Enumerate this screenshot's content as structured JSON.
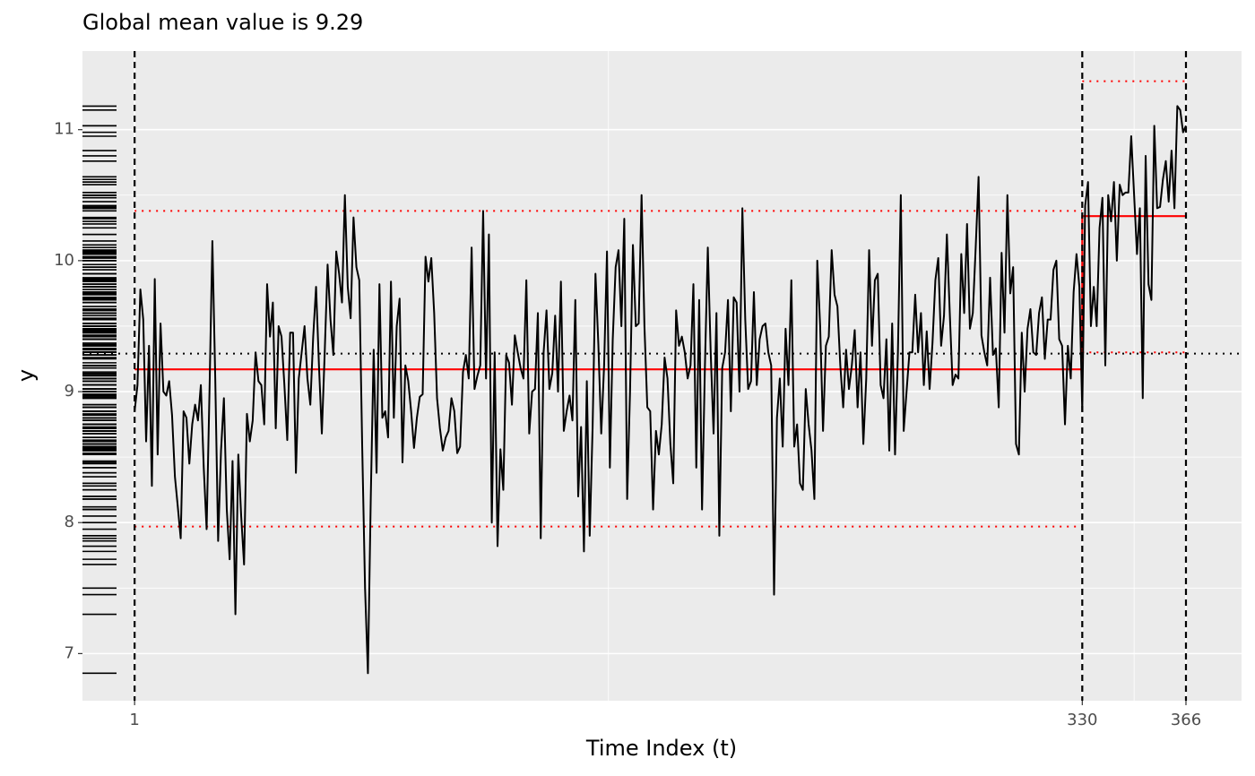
{
  "chart_data": {
    "type": "line",
    "title": "Global mean value is 9.29",
    "x_label": "Time Index (t)",
    "y_label": "y",
    "xlim": [
      -17.1,
      385.3
    ],
    "ylim": [
      6.64,
      11.6
    ],
    "xticks": [
      1,
      330,
      366
    ],
    "yticks": [
      7,
      8,
      9,
      10,
      11
    ],
    "grid": true,
    "rug": true,
    "global_mean": 9.29,
    "global_mean_color": "#000000",
    "segment_color": "#ff0000",
    "segments": [
      {
        "start": 1,
        "end": 330,
        "mean": 9.17,
        "lower": 7.97,
        "upper": 10.38
      },
      {
        "start": 330,
        "end": 366,
        "mean": 10.34,
        "lower": 9.3,
        "upper": 11.37
      }
    ],
    "x": [
      1,
      2,
      3,
      4,
      5,
      6,
      7,
      8,
      9,
      10,
      11,
      12,
      13,
      14,
      15,
      16,
      17,
      18,
      19,
      20,
      21,
      22,
      23,
      24,
      25,
      26,
      27,
      28,
      29,
      30,
      31,
      32,
      33,
      34,
      35,
      36,
      37,
      38,
      39,
      40,
      41,
      42,
      43,
      44,
      45,
      46,
      47,
      48,
      49,
      50,
      51,
      52,
      53,
      54,
      55,
      56,
      57,
      58,
      59,
      60,
      61,
      62,
      63,
      64,
      65,
      66,
      67,
      68,
      69,
      70,
      71,
      72,
      73,
      74,
      75,
      76,
      77,
      78,
      79,
      80,
      81,
      82,
      83,
      84,
      85,
      86,
      87,
      88,
      89,
      90,
      91,
      92,
      93,
      94,
      95,
      96,
      97,
      98,
      99,
      100,
      101,
      102,
      103,
      104,
      105,
      106,
      107,
      108,
      109,
      110,
      111,
      112,
      113,
      114,
      115,
      116,
      117,
      118,
      119,
      120,
      121,
      122,
      123,
      124,
      125,
      126,
      127,
      128,
      129,
      130,
      131,
      132,
      133,
      134,
      135,
      136,
      137,
      138,
      139,
      140,
      141,
      142,
      143,
      144,
      145,
      146,
      147,
      148,
      149,
      150,
      151,
      152,
      153,
      154,
      155,
      156,
      157,
      158,
      159,
      160,
      161,
      162,
      163,
      164,
      165,
      166,
      167,
      168,
      169,
      170,
      171,
      172,
      173,
      174,
      175,
      176,
      177,
      178,
      179,
      180,
      181,
      182,
      183,
      184,
      185,
      186,
      187,
      188,
      189,
      190,
      191,
      192,
      193,
      194,
      195,
      196,
      197,
      198,
      199,
      200,
      201,
      202,
      203,
      204,
      205,
      206,
      207,
      208,
      209,
      210,
      211,
      212,
      213,
      214,
      215,
      216,
      217,
      218,
      219,
      220,
      221,
      222,
      223,
      224,
      225,
      226,
      227,
      228,
      229,
      230,
      231,
      232,
      233,
      234,
      235,
      236,
      237,
      238,
      239,
      240,
      241,
      242,
      243,
      244,
      245,
      246,
      247,
      248,
      249,
      250,
      251,
      252,
      253,
      254,
      255,
      256,
      257,
      258,
      259,
      260,
      261,
      262,
      263,
      264,
      265,
      266,
      267,
      268,
      269,
      270,
      271,
      272,
      273,
      274,
      275,
      276,
      277,
      278,
      279,
      280,
      281,
      282,
      283,
      284,
      285,
      286,
      287,
      288,
      289,
      290,
      291,
      292,
      293,
      294,
      295,
      296,
      297,
      298,
      299,
      300,
      301,
      302,
      303,
      304,
      305,
      306,
      307,
      308,
      309,
      310,
      311,
      312,
      313,
      314,
      315,
      316,
      317,
      318,
      319,
      320,
      321,
      322,
      323,
      324,
      325,
      326,
      327,
      328,
      329,
      330,
      331,
      332,
      333,
      334,
      335,
      336,
      337,
      338,
      339,
      340,
      341,
      342,
      343,
      344,
      345,
      346,
      347,
      348,
      349,
      350,
      351,
      352,
      353,
      354,
      355,
      356,
      357,
      358,
      359,
      360,
      361,
      362,
      363,
      364,
      365,
      366
    ],
    "series": [
      {
        "color": "#000000",
        "values": [
          8.85,
          9.05,
          9.78,
          9.55,
          8.62,
          9.35,
          8.28,
          9.86,
          8.52,
          9.52,
          9.0,
          8.97,
          9.08,
          8.82,
          8.35,
          8.12,
          7.88,
          8.85,
          8.8,
          8.45,
          8.75,
          8.9,
          8.78,
          9.05,
          8.42,
          7.95,
          9.0,
          10.15,
          9.1,
          7.86,
          8.55,
          8.95,
          8.1,
          7.72,
          8.47,
          7.3,
          8.52,
          8.05,
          7.68,
          8.83,
          8.62,
          8.78,
          9.3,
          9.08,
          9.05,
          8.75,
          9.82,
          9.42,
          9.68,
          8.72,
          9.5,
          9.42,
          9.05,
          8.63,
          9.45,
          9.45,
          8.38,
          9.1,
          9.3,
          9.5,
          9.1,
          8.9,
          9.42,
          9.8,
          9.2,
          8.68,
          9.3,
          9.97,
          9.55,
          9.28,
          10.07,
          9.9,
          9.68,
          10.5,
          9.8,
          9.56,
          10.33,
          9.95,
          9.85,
          8.6,
          7.5,
          6.85,
          8.2,
          9.32,
          8.38,
          9.82,
          8.8,
          8.85,
          8.65,
          9.84,
          8.8,
          9.5,
          9.71,
          8.46,
          9.2,
          9.08,
          8.85,
          8.57,
          8.8,
          8.96,
          8.98,
          10.03,
          9.84,
          10.02,
          9.6,
          8.95,
          8.72,
          8.55,
          8.65,
          8.7,
          8.95,
          8.85,
          8.53,
          8.58,
          9.15,
          9.28,
          9.1,
          10.1,
          9.02,
          9.12,
          9.2,
          10.38,
          9.1,
          10.2,
          8.0,
          9.3,
          7.82,
          8.56,
          8.25,
          9.28,
          9.22,
          8.9,
          9.43,
          9.3,
          9.18,
          9.1,
          9.85,
          8.68,
          9.0,
          9.02,
          9.6,
          7.88,
          9.3,
          9.62,
          9.02,
          9.14,
          9.58,
          9.0,
          9.84,
          8.7,
          8.85,
          8.97,
          8.78,
          9.7,
          8.2,
          8.73,
          7.78,
          9.08,
          7.9,
          8.72,
          9.9,
          9.36,
          8.68,
          9.2,
          10.07,
          8.42,
          9.4,
          9.95,
          10.08,
          9.5,
          10.32,
          8.18,
          9.0,
          10.12,
          9.5,
          9.52,
          10.5,
          9.5,
          8.88,
          8.85,
          8.1,
          8.7,
          8.52,
          8.75,
          9.26,
          9.1,
          8.6,
          8.3,
          9.62,
          9.35,
          9.42,
          9.3,
          9.1,
          9.2,
          9.82,
          8.42,
          9.7,
          8.1,
          9.2,
          10.1,
          9.3,
          8.68,
          9.6,
          7.9,
          9.18,
          9.3,
          9.7,
          8.85,
          9.72,
          9.68,
          9.0,
          10.4,
          9.55,
          9.02,
          9.08,
          9.76,
          9.05,
          9.4,
          9.5,
          9.52,
          9.3,
          9.2,
          7.45,
          8.8,
          9.1,
          8.58,
          9.48,
          9.05,
          9.85,
          8.58,
          8.75,
          8.3,
          8.25,
          9.02,
          8.75,
          8.55,
          8.18,
          10.0,
          9.5,
          8.7,
          9.35,
          9.42,
          10.08,
          9.74,
          9.65,
          9.2,
          8.88,
          9.32,
          9.02,
          9.2,
          9.47,
          8.88,
          9.3,
          8.6,
          9.1,
          10.08,
          9.35,
          9.85,
          9.9,
          9.05,
          8.95,
          9.4,
          8.55,
          9.52,
          8.52,
          9.3,
          10.5,
          8.7,
          9.0,
          9.3,
          9.3,
          9.74,
          9.3,
          9.6,
          9.05,
          9.46,
          9.02,
          9.37,
          9.85,
          10.02,
          9.35,
          9.58,
          10.2,
          9.6,
          9.05,
          9.13,
          9.1,
          10.05,
          9.6,
          10.28,
          9.48,
          9.6,
          10.1,
          10.64,
          9.43,
          9.3,
          9.2,
          9.87,
          9.28,
          9.33,
          8.88,
          10.06,
          9.45,
          10.5,
          9.75,
          9.95,
          8.6,
          8.52,
          9.45,
          9.0,
          9.48,
          9.63,
          9.3,
          9.28,
          9.6,
          9.72,
          9.25,
          9.55,
          9.55,
          9.93,
          10.0,
          9.4,
          9.35,
          8.75,
          9.35,
          9.1,
          9.76,
          10.05,
          9.8,
          8.85,
          10.42,
          10.6,
          9.5,
          9.8,
          9.5,
          10.25,
          10.48,
          9.2,
          10.5,
          10.3,
          10.6,
          10.0,
          10.58,
          10.5,
          10.52,
          10.52,
          10.95,
          10.5,
          10.05,
          10.4,
          8.95,
          10.8,
          9.82,
          9.7,
          11.03,
          10.4,
          10.41,
          10.62,
          10.76,
          10.45,
          10.84,
          10.4,
          11.18,
          11.15,
          10.98,
          11.03
        ]
      }
    ]
  }
}
